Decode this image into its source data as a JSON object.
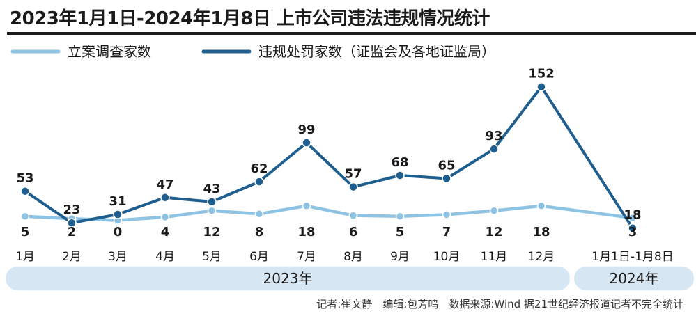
{
  "title": "2023年1月1日-2024年1月8日 上市公司违法违规情况统计",
  "source": "记者:崔文静　编辑:包芳鸣　数据来源:Wind 据21世纪经济报道记者不完全统计",
  "colors": {
    "investigations": "#8ec3e3",
    "penalties": "#1f5f8f",
    "band": "#d6e6f2",
    "text": "#1a1a1a"
  },
  "chart_data": {
    "type": "line",
    "categories": [
      "1月",
      "2月",
      "3月",
      "4月",
      "5月",
      "6月",
      "7月",
      "8月",
      "9月",
      "10月",
      "11月",
      "12月",
      "1月1日-1月8日"
    ],
    "year_groups": [
      {
        "label": "2023年",
        "from": 0,
        "to": 11
      },
      {
        "label": "2024年",
        "from": 12,
        "to": 12
      }
    ],
    "series": [
      {
        "name": "立案调查家数",
        "values": [
          5,
          2,
          0,
          4,
          12,
          8,
          18,
          6,
          5,
          7,
          12,
          18,
          3
        ]
      },
      {
        "name": "违规处罚家数（证监会及各地证监局）",
        "values": [
          53,
          23,
          31,
          47,
          43,
          62,
          99,
          57,
          68,
          65,
          93,
          152,
          18
        ]
      }
    ],
    "legend_position": "top-left",
    "grid": false
  }
}
